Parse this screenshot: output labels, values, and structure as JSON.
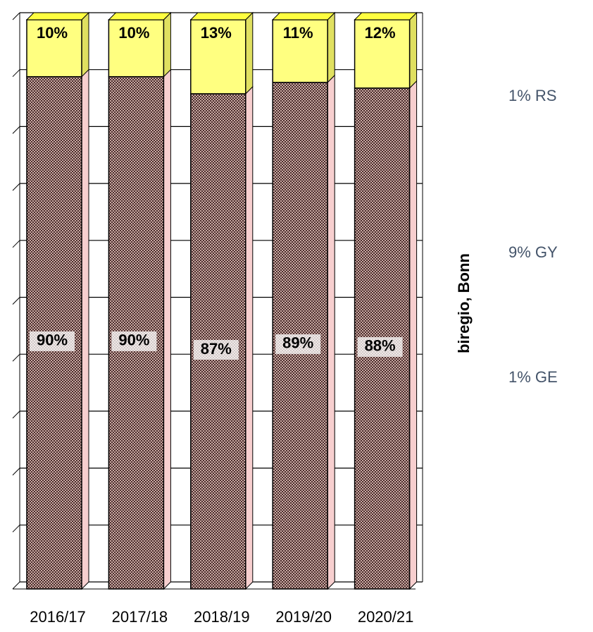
{
  "chart_data": {
    "type": "stacked-bar",
    "categories": [
      "2016/17",
      "2017/18",
      "2018/19",
      "2019/20",
      "2020/21"
    ],
    "series": [
      {
        "color": "#5a3c3c",
        "values": [
          90,
          90,
          87,
          89,
          88
        ],
        "value_labels": [
          "90%",
          "90%",
          "87%",
          "89%",
          "88%"
        ]
      },
      {
        "color": "#ffff80",
        "values": [
          10,
          10,
          13,
          11,
          12
        ],
        "value_labels": [
          "10%",
          "10%",
          "13%",
          "11%",
          "12%"
        ]
      }
    ],
    "ylim": [
      0,
      100
    ],
    "yticks": [
      0,
      10,
      20,
      30,
      40,
      50,
      60,
      70,
      80,
      90,
      100
    ],
    "grid": true,
    "credit": "biregio, Bonn",
    "side_labels": [
      "1% RS",
      "9% GY",
      "1% GE"
    ]
  }
}
